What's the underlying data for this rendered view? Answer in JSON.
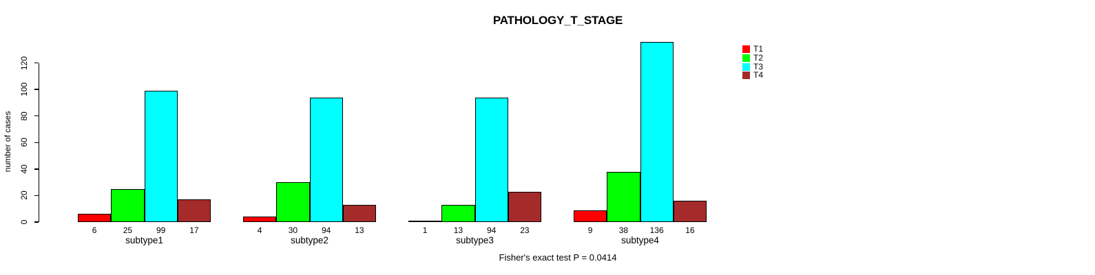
{
  "chart_data": {
    "type": "bar",
    "title": "PATHOLOGY_T_STAGE",
    "ylabel": "number of cases",
    "xlabel": "",
    "footer": "Fisher's exact test P = 0.0414",
    "categories": [
      "subtype1",
      "subtype2",
      "subtype3",
      "subtype4"
    ],
    "series": [
      {
        "name": "T1",
        "color": "#FF0000",
        "values": [
          6,
          4,
          1,
          9
        ]
      },
      {
        "name": "T2",
        "color": "#00FF00",
        "values": [
          25,
          30,
          13,
          38
        ]
      },
      {
        "name": "T3",
        "color": "#00FFFF",
        "values": [
          99,
          94,
          94,
          136
        ]
      },
      {
        "name": "T4",
        "color": "#A52A2A",
        "values": [
          17,
          13,
          23,
          16
        ]
      }
    ],
    "bar_value_labels_shown": true,
    "yticks": [
      0,
      20,
      40,
      60,
      80,
      100,
      120
    ],
    "ylim": [
      0,
      137
    ],
    "grid": false,
    "legend_position": "top-right",
    "background": "#FFFFFF",
    "axis_color": "#000000"
  }
}
